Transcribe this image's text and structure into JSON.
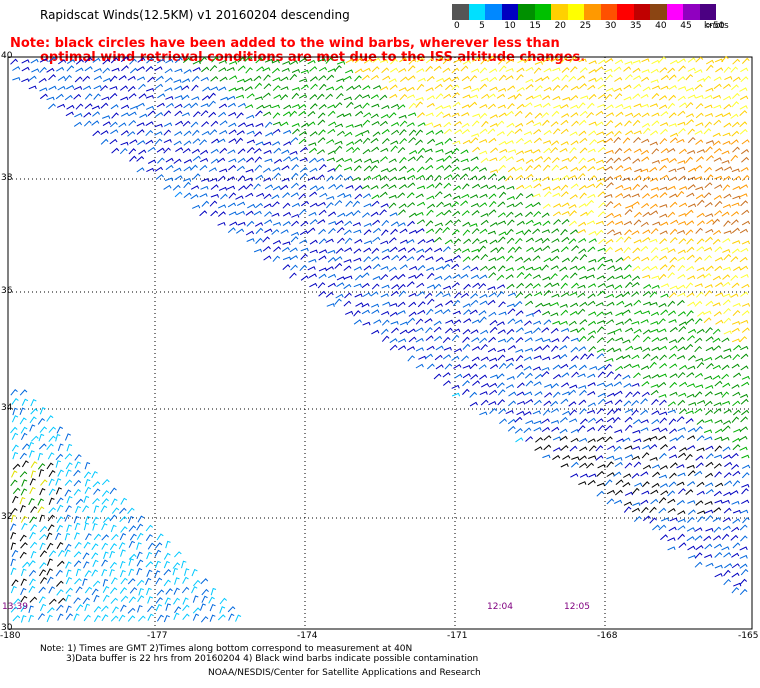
{
  "title": "Rapidscat Winds(12.5KM) v1 20160204 descending",
  "note_line1": "Note: black circles have been added to the wind barbs, wherever less than",
  "note_line2": "optimal wind retrieval conditions are met due to the ISS altitude changes.",
  "legend": {
    "labels": [
      "0",
      "5",
      "10",
      "15",
      "20",
      "25",
      "30",
      "35",
      "40",
      "45",
      ">50"
    ],
    "units": "knots",
    "colors": [
      "#555555",
      "#00e0ff",
      "#0088ff",
      "#0000c0",
      "#009000",
      "#00c000",
      "#ffd000",
      "#ffff00",
      "#ff9900",
      "#ff5000",
      "#ff0000",
      "#c00000",
      "#8b4513",
      "#ff00ff",
      "#9000c0",
      "#4b0082"
    ]
  },
  "lat_labels": [
    "40",
    "38",
    "36",
    "34",
    "32",
    "30"
  ],
  "lon_labels": [
    "-180",
    "-177",
    "-174",
    "-171",
    "-168",
    "-165"
  ],
  "times": [
    {
      "label": "13:39"
    },
    {
      "label": "12:04"
    },
    {
      "label": "12:05"
    }
  ],
  "footer_line1": "Note: 1) Times are GMT 2)Times along bottom correspond to measurement at 40N",
  "footer_line2": "3)Data buffer is 22 hrs from 20160204 4) Black wind barbs indicate possible contamination",
  "footer_line3": "NOAA/NESDIS/Center for Satellite Applications and Research"
}
